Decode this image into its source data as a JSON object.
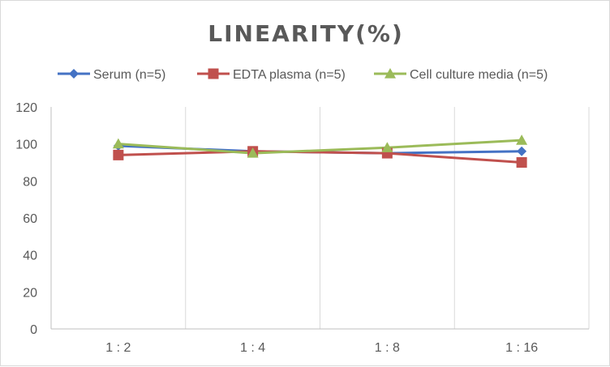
{
  "chart_data": {
    "type": "line",
    "title": "LINEARITY(%)",
    "xlabel": "",
    "ylabel": "",
    "categories": [
      "1:2",
      "1:4",
      "1:8",
      "1:16"
    ],
    "ylim": [
      0,
      120
    ],
    "yticks": [
      0,
      20,
      40,
      60,
      80,
      100,
      120
    ],
    "grid": "vertical",
    "legend_position": "top",
    "series": [
      {
        "name": "Serum (n=5)",
        "values": [
          99,
          96,
          95,
          96
        ],
        "color": "#4472c4",
        "marker": "diamond"
      },
      {
        "name": "EDTA plasma (n=5)",
        "values": [
          94,
          96,
          95,
          90
        ],
        "color": "#c0504d",
        "marker": "square"
      },
      {
        "name": "Cell culture media (n=5)",
        "values": [
          100,
          95,
          98,
          102
        ],
        "color": "#9bbb59",
        "marker": "triangle"
      }
    ]
  }
}
